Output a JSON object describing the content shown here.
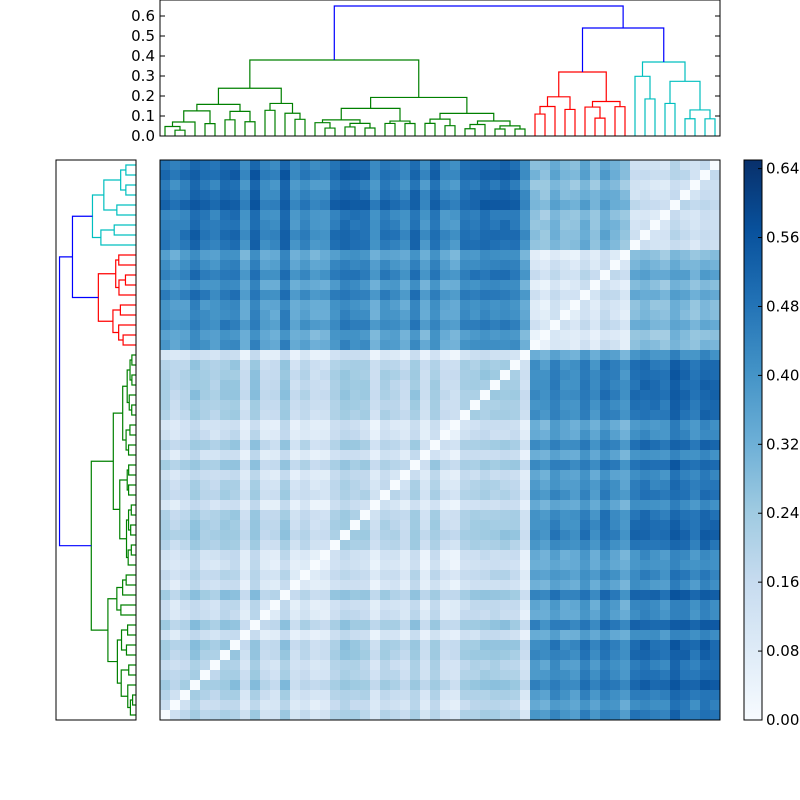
{
  "figure": {
    "description_type": "clustered distance matrix"
  },
  "colors": {
    "cluster_green": "#008000",
    "cluster_red": "#ff0000",
    "cluster_cyan": "#00bfbf",
    "above_threshold": "#0000ff",
    "cmap_low": "#f7fbff",
    "cmap_high": "#08306b"
  },
  "chart_data": [
    {
      "type": "dendrogram",
      "name": "top-dendrogram",
      "orientation": "top",
      "ylim": [
        0.0,
        0.68
      ],
      "yticks": [
        "0.0",
        "0.1",
        "0.2",
        "0.3",
        "0.4",
        "0.5",
        "0.6"
      ],
      "ytick_values": [
        0.0,
        0.1,
        0.2,
        0.3,
        0.4,
        0.5,
        0.6
      ],
      "leaf_count": 56,
      "clusters": [
        {
          "name": "green",
          "leaves": [
            0,
            36
          ],
          "color": "cluster_green"
        },
        {
          "name": "red",
          "leaves": [
            37,
            46
          ],
          "color": "cluster_red"
        },
        {
          "name": "cyan",
          "leaves": [
            47,
            55
          ],
          "color": "cluster_cyan"
        }
      ],
      "root_height": 0.65,
      "green_height": 0.38,
      "right_join_height": 0.54,
      "red_height": 0.32,
      "cyan_height": 0.37
    },
    {
      "type": "dendrogram",
      "name": "left-dendrogram",
      "orientation": "left",
      "leaf_count": 56,
      "note": "mirror of top dendrogram"
    },
    {
      "type": "heatmap",
      "name": "distance-matrix",
      "rows": 56,
      "cols": 56,
      "value_range": [
        0.0,
        0.65
      ],
      "block_order": [
        "cyan",
        "red",
        "green"
      ],
      "within_cluster_mean": 0.15,
      "between_cluster_mean": 0.42
    },
    {
      "type": "colorbar",
      "name": "colorbar",
      "range": [
        0.0,
        0.65
      ],
      "ticks": [
        "0.00",
        "0.08",
        "0.16",
        "0.24",
        "0.32",
        "0.40",
        "0.48",
        "0.56",
        "0.64"
      ],
      "tick_values": [
        0.0,
        0.08,
        0.16,
        0.24,
        0.32,
        0.4,
        0.48,
        0.56,
        0.64
      ]
    }
  ]
}
